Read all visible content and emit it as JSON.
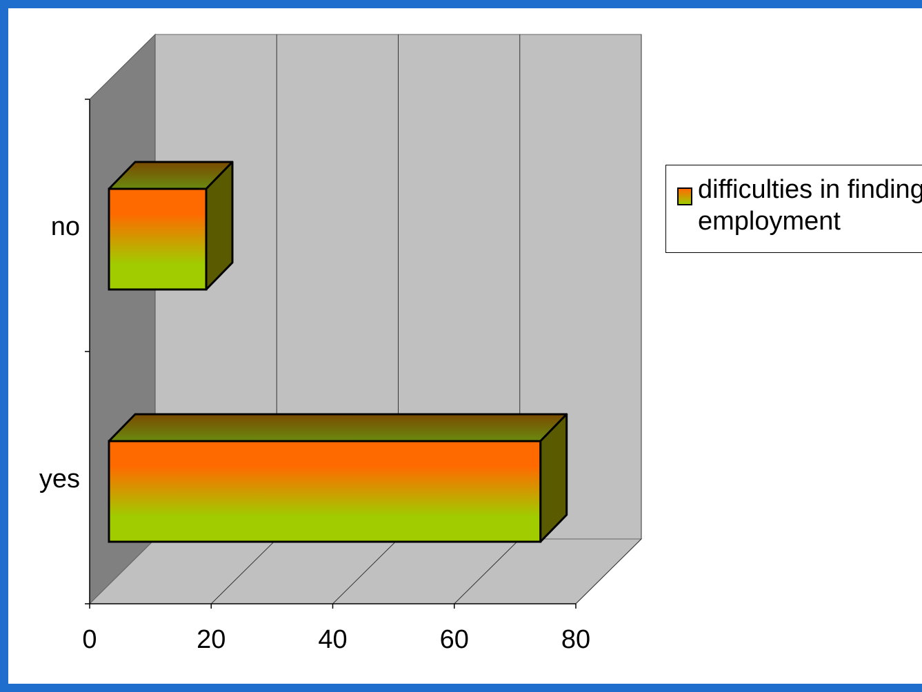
{
  "chart_data": {
    "type": "bar",
    "orientation": "horizontal",
    "style": "3d",
    "categories": [
      "no",
      "yes"
    ],
    "series": [
      {
        "name": "difficulties in finding employment",
        "values": [
          16,
          71
        ]
      }
    ],
    "xlim": [
      0,
      80
    ],
    "xticks": [
      "0",
      "20",
      "40",
      "60",
      "80"
    ],
    "grid": true,
    "legend": "right",
    "colors": {
      "bar_top": "#ff6a00",
      "bar_bottom": "#a0cc00",
      "wall": "#c0c0c0",
      "side_wall": "#808080"
    }
  }
}
